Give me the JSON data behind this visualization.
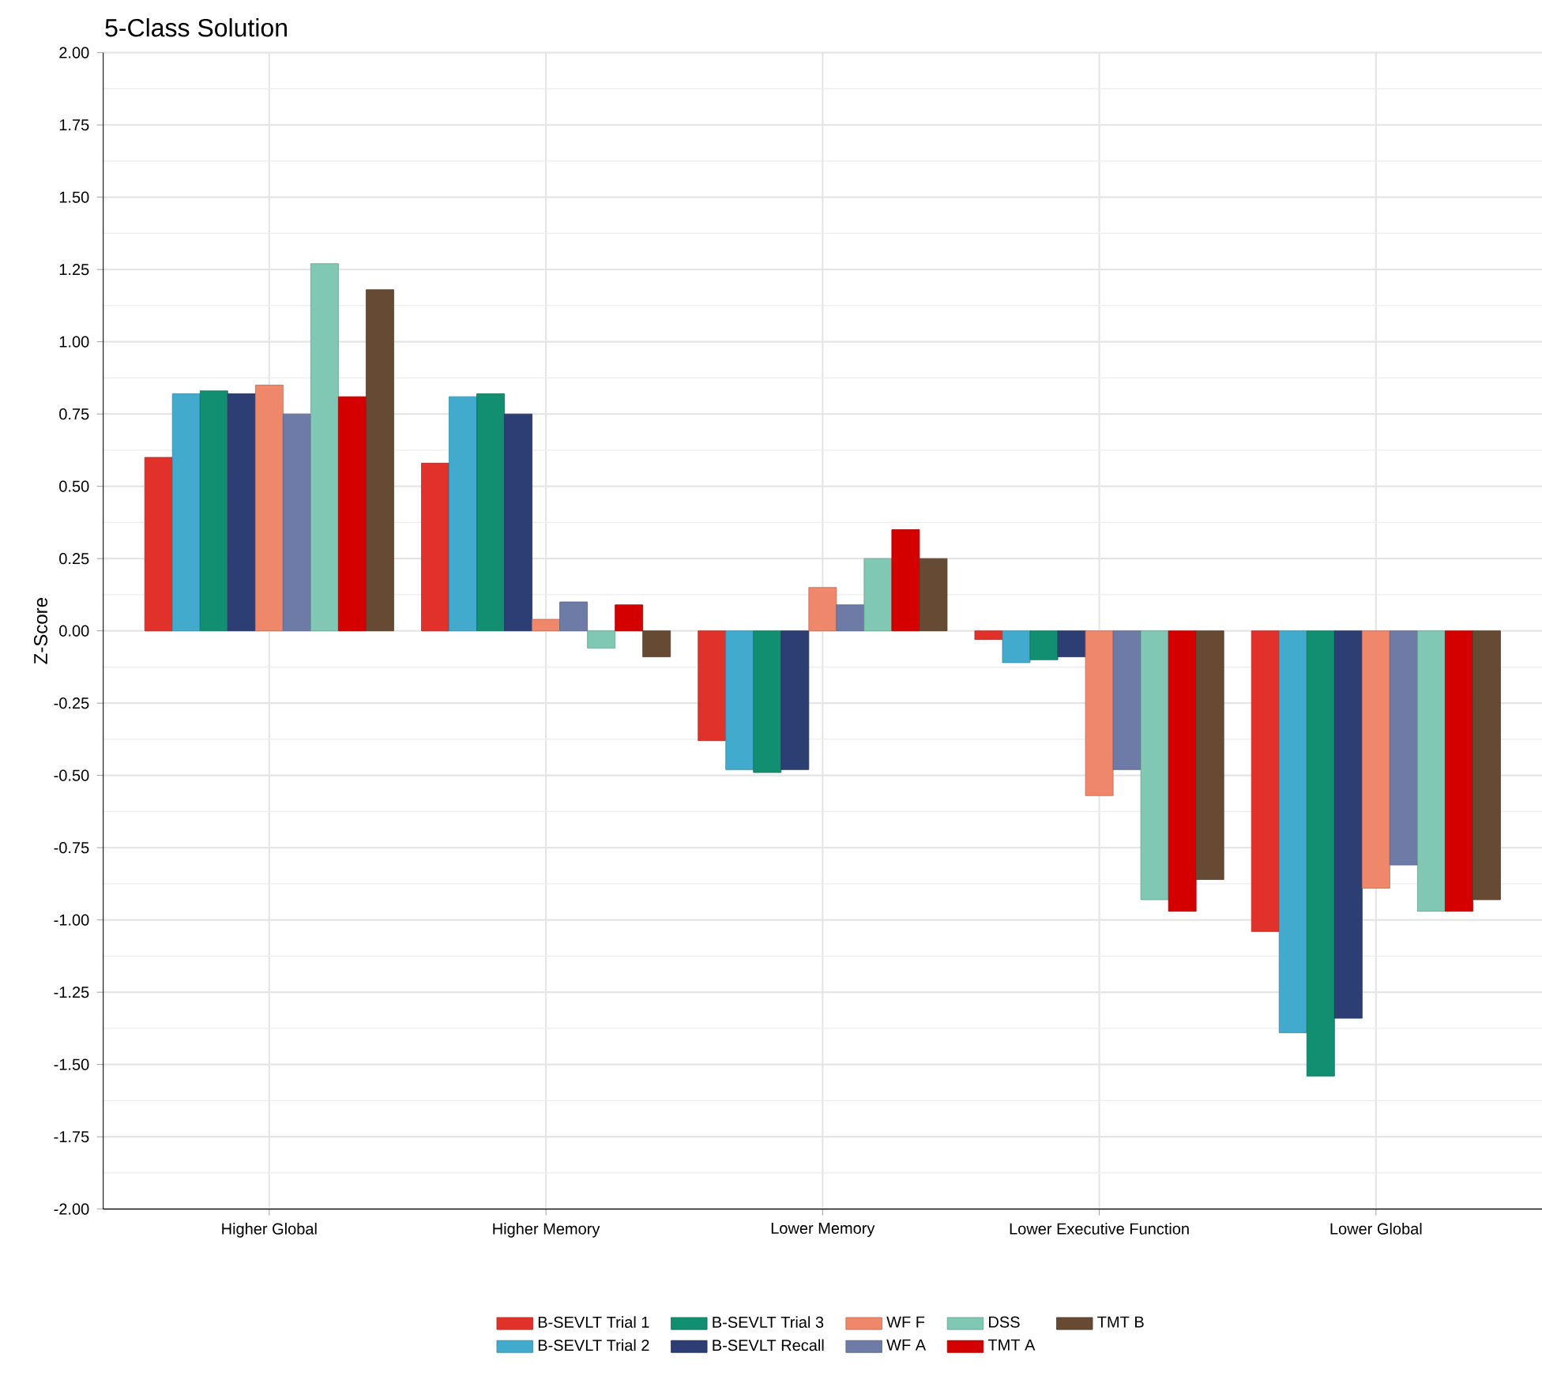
{
  "chart_data": {
    "type": "bar",
    "title": "5-Class Solution",
    "ylabel": "Z-Score",
    "categories": [
      "Higher Global",
      "Higher Memory",
      "Lower Memory",
      "Lower Executive Function",
      "Lower Global"
    ],
    "series": [
      {
        "name": "B-SEVLT Trial 1",
        "color": "#e0322a",
        "values": [
          0.6,
          0.58,
          -0.38,
          -0.03,
          -1.04
        ]
      },
      {
        "name": "B-SEVLT Trial 2",
        "color": "#42abcd",
        "values": [
          0.82,
          0.81,
          -0.48,
          -0.11,
          -1.39
        ]
      },
      {
        "name": "B-SEVLT Trial 3",
        "color": "#118f70",
        "values": [
          0.83,
          0.82,
          -0.49,
          -0.1,
          -1.54
        ]
      },
      {
        "name": "B-SEVLT Recall",
        "color": "#2c3e74",
        "values": [
          0.82,
          0.75,
          -0.48,
          -0.09,
          -1.34
        ]
      },
      {
        "name": "WF F",
        "color": "#ef876a",
        "values": [
          0.85,
          0.04,
          0.15,
          -0.57,
          -0.89
        ]
      },
      {
        "name": "WF A",
        "color": "#6e7ba6",
        "values": [
          0.75,
          0.1,
          0.09,
          -0.48,
          -0.81
        ]
      },
      {
        "name": "DSS",
        "color": "#80c8b3",
        "values": [
          1.27,
          -0.06,
          0.25,
          -0.93,
          -0.97
        ]
      },
      {
        "name": "TMT A",
        "color": "#d40000",
        "values": [
          0.81,
          0.09,
          0.35,
          -0.97,
          -0.97
        ]
      },
      {
        "name": "TMT B",
        "color": "#664a33",
        "values": [
          1.18,
          -0.09,
          0.25,
          -0.86,
          -0.93
        ]
      }
    ],
    "ylim": [
      -2,
      2
    ],
    "yticks": [
      {
        "value": -2,
        "label": "-2.00"
      },
      {
        "value": -1.75,
        "label": "-1.75"
      },
      {
        "value": -1.5,
        "label": "-1.50"
      },
      {
        "value": -1.25,
        "label": "-1.25"
      },
      {
        "value": -1,
        "label": "-1.00"
      },
      {
        "value": -0.75,
        "label": "-0.75"
      },
      {
        "value": -0.5,
        "label": "-0.50"
      },
      {
        "value": -0.25,
        "label": "-0.25"
      },
      {
        "value": 0,
        "label": "0.00"
      },
      {
        "value": 0.25,
        "label": "0.25"
      },
      {
        "value": 0.5,
        "label": "0.50"
      },
      {
        "value": 0.75,
        "label": "0.75"
      },
      {
        "value": 1,
        "label": "1.00"
      },
      {
        "value": 1.25,
        "label": "1.25"
      },
      {
        "value": 1.5,
        "label": "1.50"
      },
      {
        "value": 1.75,
        "label": "1.75"
      },
      {
        "value": 2,
        "label": "2.00"
      }
    ],
    "grid": true,
    "legend": "bottom"
  }
}
